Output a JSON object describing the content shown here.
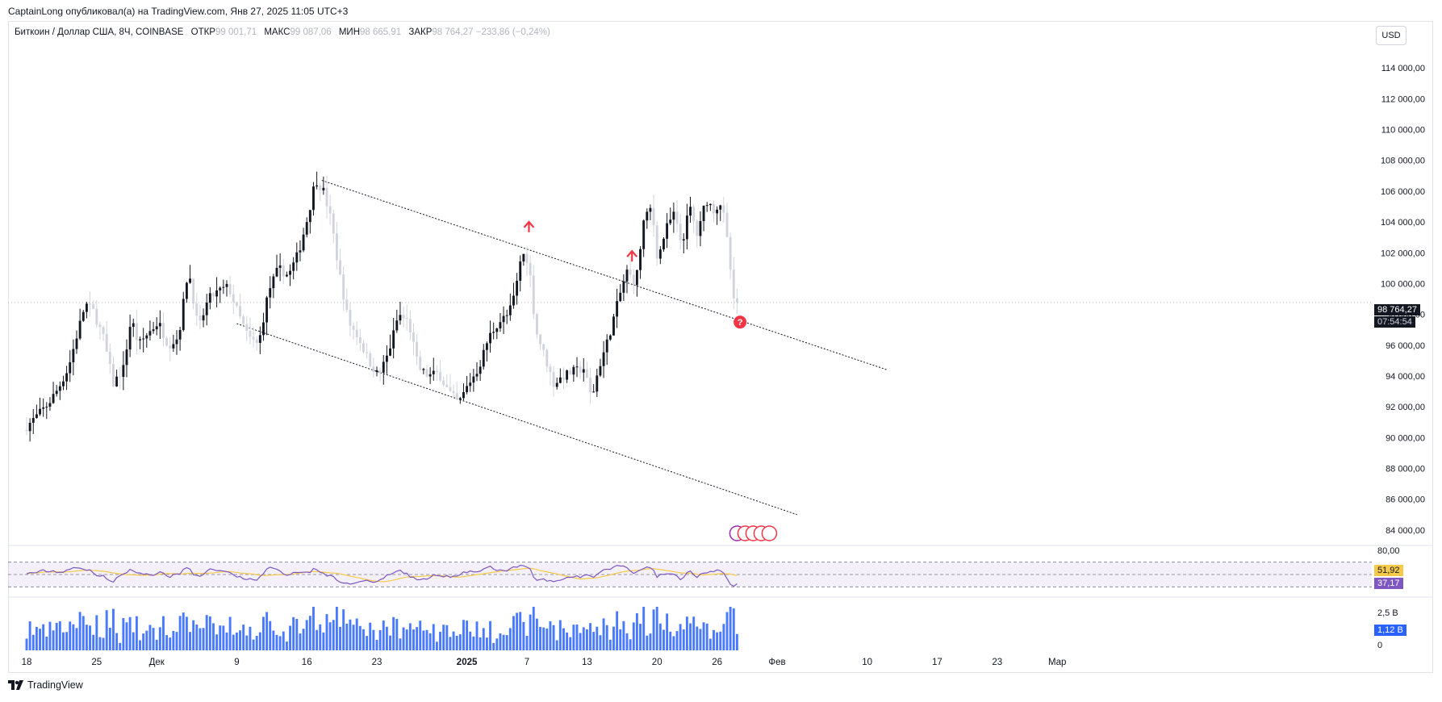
{
  "header": {
    "author": "CaptainLong",
    "published_text": "опубликовал(а) на TradingView.com,",
    "datetime": "Янв 27, 2025 11:05 UTC+3"
  },
  "legend": {
    "symbol": "Биткоин / Доллар США, 8Ч, COINBASE",
    "open_label": "ОТКР",
    "open_value": "99 001,71",
    "high_label": "МАКС",
    "high_value": "99 087,06",
    "low_label": "МИН",
    "low_value": "98 665,91",
    "close_label": "ЗАКР",
    "close_value": "98 764,27",
    "change": "−233,86 (−0,24%)"
  },
  "currency_button": "USD",
  "current_price": {
    "value": "98 764,27",
    "countdown": "07:54:54"
  },
  "rsi": {
    "top_label": "80,00",
    "ma_value": "51,92",
    "rsi_value": "37,17",
    "upper": 70,
    "lower": 30,
    "mid": 50
  },
  "volume": {
    "top_label": "2,5 B",
    "zero_label": "0",
    "last_value": "1,12 B"
  },
  "brand": "TradingView",
  "colors": {
    "up": "#131722",
    "down": "#d1d4dc",
    "rsi_line": "#7e57c2",
    "rsi_ma": "#f7c948",
    "volume": "#2962ff",
    "marker": "#f23645"
  },
  "chart_data": {
    "type": "candlestick",
    "timeframe": "8H",
    "y_ticks": [
      84000,
      86000,
      88000,
      90000,
      92000,
      94000,
      96000,
      98000,
      100000,
      102000,
      104000,
      106000,
      108000,
      110000,
      112000,
      114000
    ],
    "y_tick_labels": [
      "84 000,00",
      "86 000,00",
      "88 000,00",
      "90 000,00",
      "92 000,00",
      "94 000,00",
      "96 000,00",
      "98 000,00",
      "100 000,00",
      "102 000,00",
      "104 000,00",
      "106 000,00",
      "108 000,00",
      "110 000,00",
      "112 000,00",
      "114 000,00"
    ],
    "ylim": [
      83000,
      116000
    ],
    "x_ticks": [
      {
        "label": "18",
        "day": 0,
        "bold": false
      },
      {
        "label": "25",
        "day": 7,
        "bold": false
      },
      {
        "label": "Дек",
        "day": 13,
        "bold": false
      },
      {
        "label": "9",
        "day": 21,
        "bold": false
      },
      {
        "label": "16",
        "day": 28,
        "bold": false
      },
      {
        "label": "23",
        "day": 35,
        "bold": false
      },
      {
        "label": "2025",
        "day": 44,
        "bold": true
      },
      {
        "label": "7",
        "day": 50,
        "bold": false
      },
      {
        "label": "13",
        "day": 56,
        "bold": false
      },
      {
        "label": "20",
        "day": 63,
        "bold": false
      },
      {
        "label": "26",
        "day": 69,
        "bold": false
      },
      {
        "label": "Фев",
        "day": 75,
        "bold": false
      },
      {
        "label": "10",
        "day": 84,
        "bold": false
      },
      {
        "label": "17",
        "day": 91,
        "bold": false
      },
      {
        "label": "23",
        "day": 97,
        "bold": false
      },
      {
        "label": "Мар",
        "day": 103,
        "bold": false
      }
    ],
    "price_path": [
      {
        "day": 0,
        "price": 90500
      },
      {
        "day": 1.5,
        "price": 91500
      },
      {
        "day": 2.5,
        "price": 92200
      },
      {
        "day": 3.5,
        "price": 93200
      },
      {
        "day": 4.5,
        "price": 94500
      },
      {
        "day": 5.5,
        "price": 97000
      },
      {
        "day": 6.2,
        "price": 98700
      },
      {
        "day": 7,
        "price": 98200
      },
      {
        "day": 8,
        "price": 96500
      },
      {
        "day": 9,
        "price": 93500
      },
      {
        "day": 10,
        "price": 94500
      },
      {
        "day": 10.8,
        "price": 97800
      },
      {
        "day": 11.5,
        "price": 96000
      },
      {
        "day": 12.5,
        "price": 96800
      },
      {
        "day": 13.5,
        "price": 97500
      },
      {
        "day": 14.5,
        "price": 96000
      },
      {
        "day": 15.5,
        "price": 96500
      },
      {
        "day": 16.5,
        "price": 101000
      },
      {
        "day": 17.5,
        "price": 97000
      },
      {
        "day": 18.5,
        "price": 99000
      },
      {
        "day": 19.5,
        "price": 99500
      },
      {
        "day": 20.5,
        "price": 99800
      },
      {
        "day": 21.5,
        "price": 98000
      },
      {
        "day": 22.5,
        "price": 96500
      },
      {
        "day": 23.5,
        "price": 96000
      },
      {
        "day": 24.5,
        "price": 99500
      },
      {
        "day": 25.5,
        "price": 101000
      },
      {
        "day": 26.5,
        "price": 100500
      },
      {
        "day": 27.5,
        "price": 102000
      },
      {
        "day": 28.5,
        "price": 104500
      },
      {
        "day": 29.2,
        "price": 106800
      },
      {
        "day": 30,
        "price": 106000
      },
      {
        "day": 30.8,
        "price": 104000
      },
      {
        "day": 31.5,
        "price": 101000
      },
      {
        "day": 32.5,
        "price": 97500
      },
      {
        "day": 33.5,
        "price": 96500
      },
      {
        "day": 34.5,
        "price": 95000
      },
      {
        "day": 35.5,
        "price": 94000
      },
      {
        "day": 36.5,
        "price": 95500
      },
      {
        "day": 37.5,
        "price": 98000
      },
      {
        "day": 38.5,
        "price": 97500
      },
      {
        "day": 39.5,
        "price": 94500
      },
      {
        "day": 40.5,
        "price": 94000
      },
      {
        "day": 41.5,
        "price": 94200
      },
      {
        "day": 42.5,
        "price": 93000
      },
      {
        "day": 43.5,
        "price": 92200
      },
      {
        "day": 44.5,
        "price": 93500
      },
      {
        "day": 45.5,
        "price": 94500
      },
      {
        "day": 46.5,
        "price": 96500
      },
      {
        "day": 47.5,
        "price": 97500
      },
      {
        "day": 48.5,
        "price": 98000
      },
      {
        "day": 49.2,
        "price": 99500
      },
      {
        "day": 49.8,
        "price": 102000
      },
      {
        "day": 50.5,
        "price": 101500
      },
      {
        "day": 51.2,
        "price": 97000
      },
      {
        "day": 52,
        "price": 95500
      },
      {
        "day": 53,
        "price": 93500
      },
      {
        "day": 54,
        "price": 94000
      },
      {
        "day": 55,
        "price": 94300
      },
      {
        "day": 56,
        "price": 94500
      },
      {
        "day": 56.8,
        "price": 92500
      },
      {
        "day": 57.5,
        "price": 94500
      },
      {
        "day": 58.5,
        "price": 96500
      },
      {
        "day": 59.5,
        "price": 99000
      },
      {
        "day": 60.3,
        "price": 100800
      },
      {
        "day": 61.2,
        "price": 100000
      },
      {
        "day": 62,
        "price": 104000
      },
      {
        "day": 62.8,
        "price": 105000
      },
      {
        "day": 63.4,
        "price": 101500
      },
      {
        "day": 64.2,
        "price": 103500
      },
      {
        "day": 65,
        "price": 104500
      },
      {
        "day": 65.8,
        "price": 102500
      },
      {
        "day": 66.6,
        "price": 105000
      },
      {
        "day": 67.4,
        "price": 103000
      },
      {
        "day": 68.2,
        "price": 105500
      },
      {
        "day": 69,
        "price": 104800
      },
      {
        "day": 69.8,
        "price": 105300
      },
      {
        "day": 70.5,
        "price": 102000
      },
      {
        "day": 71,
        "price": 98764
      }
    ],
    "trendlines": [
      {
        "from": {
          "day": 29.5,
          "price": 106700
        },
        "to": {
          "day": 86,
          "price": 94400
        }
      },
      {
        "from": {
          "day": 21,
          "price": 97400
        },
        "to": {
          "day": 77,
          "price": 85000
        }
      }
    ],
    "current_price_line": 98764
  }
}
